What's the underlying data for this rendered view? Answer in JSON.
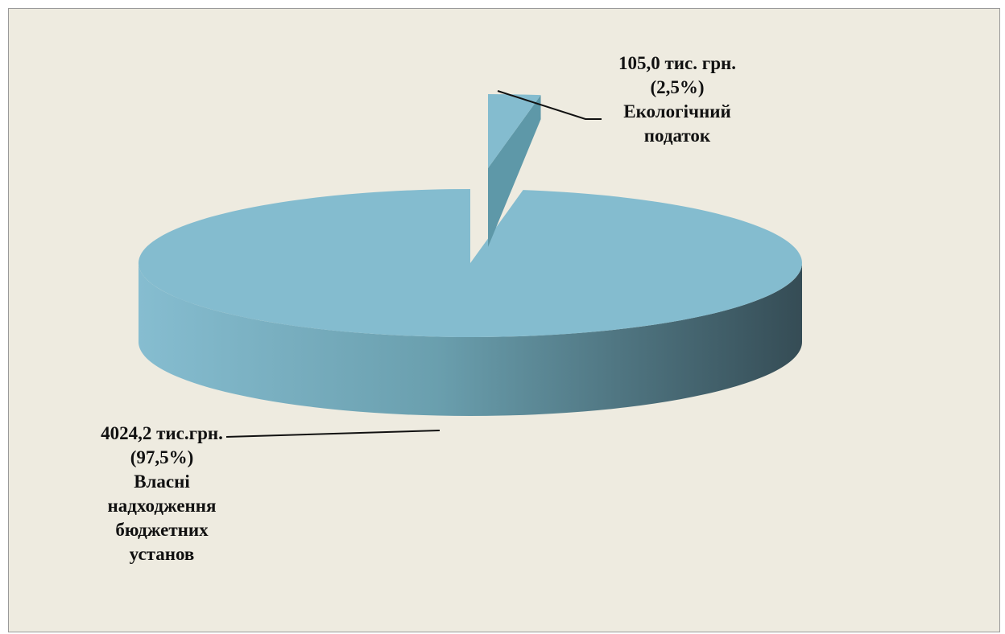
{
  "chart_data": {
    "type": "pie",
    "style": "3d-exploded",
    "unit": "тис. грн.",
    "colors": {
      "background": "#eeebe0",
      "top": "#84bccf",
      "side_light": "#86bdd0",
      "side_dark": "#354c55",
      "leader": "#111111"
    },
    "slices": [
      {
        "name": "Власні надходження бюджетних установ",
        "value": 4024.2,
        "percent": 97.5,
        "label_lines": [
          "4024,2 тис.грн.",
          "(97,5%)",
          "Власні",
          "надходження",
          "бюджетних",
          "установ"
        ]
      },
      {
        "name": "Екологічний податок",
        "value": 105.0,
        "percent": 2.5,
        "exploded": true,
        "label_lines": [
          "105,0 тис. грн.",
          "(2,5%)",
          "Екологічний",
          "податок"
        ]
      }
    ]
  }
}
